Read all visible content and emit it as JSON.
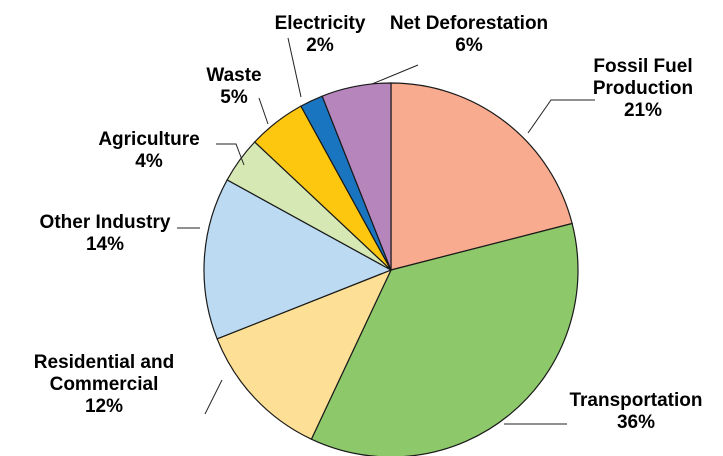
{
  "chart_data": {
    "type": "pie",
    "title": "",
    "slices": [
      {
        "label_lines": [
          "Fossil Fuel",
          "Production"
        ],
        "percent_label": "21%",
        "value": 21,
        "color": "#f9ab8f"
      },
      {
        "label_lines": [
          "Transportation"
        ],
        "percent_label": "36%",
        "value": 36,
        "color": "#8dc86b"
      },
      {
        "label_lines": [
          "Residential and",
          "Commercial"
        ],
        "percent_label": "12%",
        "value": 12,
        "color": "#fde095"
      },
      {
        "label_lines": [
          "Other Industry"
        ],
        "percent_label": "14%",
        "value": 14,
        "color": "#bcdaf2"
      },
      {
        "label_lines": [
          "Agriculture"
        ],
        "percent_label": "4%",
        "value": 4,
        "color": "#d6e8b3"
      },
      {
        "label_lines": [
          "Waste"
        ],
        "percent_label": "5%",
        "value": 5,
        "color": "#fec70f"
      },
      {
        "label_lines": [
          "Electricity"
        ],
        "percent_label": "2%",
        "value": 2,
        "color": "#1a75c0"
      },
      {
        "label_lines": [
          "Net Deforestation"
        ],
        "percent_label": "6%",
        "value": 6,
        "color": "#b585bc"
      }
    ]
  }
}
